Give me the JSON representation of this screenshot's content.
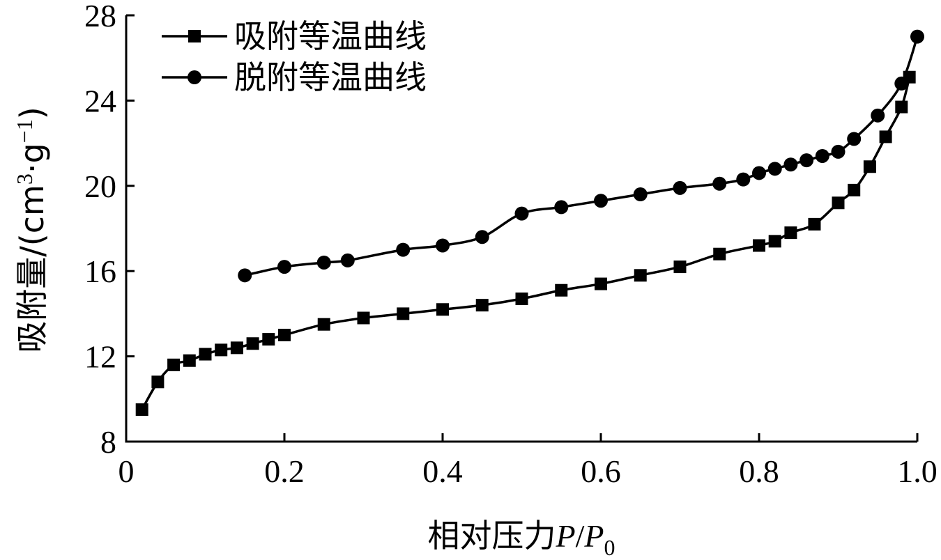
{
  "chart_data": {
    "type": "line",
    "xlabel": "相对压力P/P0",
    "xlabel_parts": {
      "text": "相对压力",
      "p": "P",
      "slash": "/",
      "p0": "P",
      "sub": "0"
    },
    "ylabel": "吸附量/(cm3·g-1)",
    "ylabel_parts": {
      "text": "吸附量/(cm",
      "sup3": "3",
      "dot": "·g",
      "sup": "−1",
      "close": ")"
    },
    "xlim": [
      0,
      1.0
    ],
    "ylim": [
      8,
      28
    ],
    "x_ticks": [
      0,
      0.2,
      0.4,
      0.6,
      0.8,
      1.0
    ],
    "x_tick_labels": [
      "0",
      "0.2",
      "0.4",
      "0.6",
      "0.8",
      "1.0"
    ],
    "y_ticks": [
      8,
      12,
      16,
      20,
      24,
      28
    ],
    "y_tick_labels": [
      "8",
      "12",
      "16",
      "20",
      "24",
      "28"
    ],
    "grid": false,
    "legend_position": "top-left",
    "series": [
      {
        "name": "吸附等温曲线",
        "marker": "square",
        "color": "#000000",
        "x": [
          0.02,
          0.04,
          0.06,
          0.08,
          0.1,
          0.12,
          0.14,
          0.16,
          0.18,
          0.2,
          0.25,
          0.3,
          0.35,
          0.4,
          0.45,
          0.5,
          0.55,
          0.6,
          0.65,
          0.7,
          0.75,
          0.8,
          0.82,
          0.84,
          0.87,
          0.9,
          0.92,
          0.94,
          0.96,
          0.98,
          0.99
        ],
        "y": [
          9.5,
          10.8,
          11.6,
          11.8,
          12.1,
          12.3,
          12.4,
          12.6,
          12.8,
          13.0,
          13.5,
          13.8,
          14.0,
          14.2,
          14.4,
          14.7,
          15.1,
          15.4,
          15.8,
          16.2,
          16.8,
          17.2,
          17.4,
          17.8,
          18.2,
          19.2,
          19.8,
          20.9,
          22.3,
          23.7,
          25.1
        ]
      },
      {
        "name": "脱附等温曲线",
        "marker": "circle",
        "color": "#000000",
        "x": [
          0.15,
          0.2,
          0.25,
          0.28,
          0.35,
          0.4,
          0.45,
          0.5,
          0.55,
          0.6,
          0.65,
          0.7,
          0.75,
          0.78,
          0.8,
          0.82,
          0.84,
          0.86,
          0.88,
          0.9,
          0.92,
          0.95,
          0.98,
          1.0
        ],
        "y": [
          15.8,
          16.2,
          16.4,
          16.5,
          17.0,
          17.2,
          17.6,
          18.7,
          19.0,
          19.3,
          19.6,
          19.9,
          20.1,
          20.3,
          20.6,
          20.8,
          21.0,
          21.2,
          21.4,
          21.6,
          22.2,
          23.3,
          24.8,
          27.0
        ]
      }
    ]
  }
}
